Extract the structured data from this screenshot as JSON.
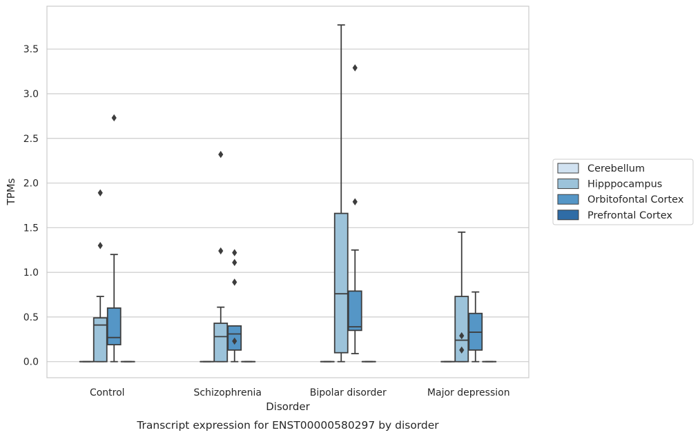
{
  "chart_data": {
    "type": "box",
    "caption": "Transcript expression for ENST00000580297 by disorder",
    "xlabel": "Disorder",
    "ylabel": "TPMs",
    "ylim": [
      -0.18,
      3.98
    ],
    "yticks": [
      0.0,
      0.5,
      1.0,
      1.5,
      2.0,
      2.5,
      3.0,
      3.5
    ],
    "ytick_labels": [
      "0.0",
      "0.5",
      "1.0",
      "1.5",
      "2.0",
      "2.5",
      "3.0",
      "3.5"
    ],
    "grid": "horizontal",
    "legend_position": "right",
    "categories": [
      "Control",
      "Schizophrenia",
      "Bipolar disorder",
      "Major depression"
    ],
    "series": [
      {
        "name": "Cerebellum",
        "color": "#d1e2f1",
        "boxes": [
          {
            "whisker_low": 0,
            "q1": 0,
            "median": 0,
            "q3": 0,
            "whisker_high": 0,
            "outliers": []
          },
          {
            "whisker_low": 0,
            "q1": 0,
            "median": 0,
            "q3": 0,
            "whisker_high": 0,
            "outliers": []
          },
          {
            "whisker_low": 0,
            "q1": 0,
            "median": 0,
            "q3": 0,
            "whisker_high": 0,
            "outliers": []
          },
          {
            "whisker_low": 0,
            "q1": 0,
            "median": 0,
            "q3": 0,
            "whisker_high": 0,
            "outliers": []
          }
        ]
      },
      {
        "name": "Hipppocampus",
        "color": "#9cc3da",
        "boxes": [
          {
            "whisker_low": 0,
            "q1": 0,
            "median": 0.41,
            "q3": 0.49,
            "whisker_high": 0.73,
            "outliers": [
              1.3,
              1.89
            ]
          },
          {
            "whisker_low": 0,
            "q1": 0,
            "median": 0.28,
            "q3": 0.43,
            "whisker_high": 0.61,
            "outliers": [
              1.24,
              2.32
            ]
          },
          {
            "whisker_low": 0,
            "q1": 0.1,
            "median": 0.76,
            "q3": 1.66,
            "whisker_high": 3.77,
            "outliers": []
          },
          {
            "whisker_low": 0,
            "q1": 0,
            "median": 0.24,
            "q3": 0.73,
            "whisker_high": 1.45,
            "outliers": [
              0.13,
              0.29
            ]
          }
        ]
      },
      {
        "name": "Orbitofontal Cortex",
        "color": "#5596c6",
        "boxes": [
          {
            "whisker_low": 0,
            "q1": 0.19,
            "median": 0.27,
            "q3": 0.6,
            "whisker_high": 1.2,
            "outliers": [
              2.73
            ]
          },
          {
            "whisker_low": 0,
            "q1": 0.13,
            "median": 0.31,
            "q3": 0.4,
            "whisker_high": 0.4,
            "outliers": [
              0.89,
              1.11,
              1.22,
              0.23
            ]
          },
          {
            "whisker_low": 0.09,
            "q1": 0.35,
            "median": 0.39,
            "q3": 0.79,
            "whisker_high": 1.25,
            "outliers": [
              1.79,
              3.29
            ]
          },
          {
            "whisker_low": 0,
            "q1": 0.13,
            "median": 0.33,
            "q3": 0.54,
            "whisker_high": 0.78,
            "outliers": []
          }
        ]
      },
      {
        "name": "Prefrontal Cortex",
        "color": "#2f6ca6",
        "boxes": [
          {
            "whisker_low": 0,
            "q1": 0,
            "median": 0,
            "q3": 0,
            "whisker_high": 0,
            "outliers": []
          },
          {
            "whisker_low": 0,
            "q1": 0,
            "median": 0,
            "q3": 0,
            "whisker_high": 0,
            "outliers": []
          },
          {
            "whisker_low": 0,
            "q1": 0,
            "median": 0,
            "q3": 0,
            "whisker_high": 0,
            "outliers": []
          },
          {
            "whisker_low": 0,
            "q1": 0,
            "median": 0,
            "q3": 0,
            "whisker_high": 0,
            "outliers": []
          }
        ]
      }
    ]
  }
}
